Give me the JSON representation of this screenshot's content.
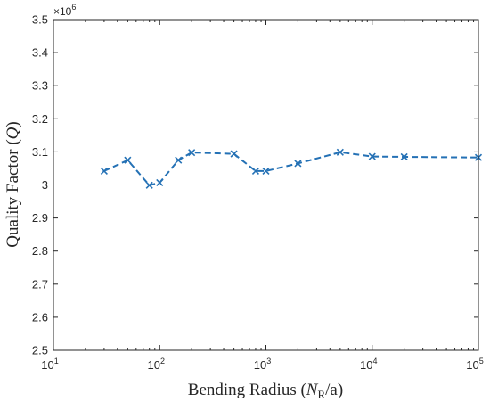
{
  "chart_data": {
    "type": "line",
    "title": "",
    "xlabel": {
      "main": "Bending Radius (",
      "var": "N",
      "sub": "R",
      "tail": "/a)"
    },
    "ylabel": {
      "main": "Quality Factor (",
      "var": "Q",
      "tail": ")"
    },
    "xscale": "log",
    "xlim": [
      10,
      100000
    ],
    "ylim": [
      2.5,
      3.5
    ],
    "y_multiplier": {
      "base": "×10",
      "exp": "6"
    },
    "x_ticks": [
      {
        "value": 10,
        "base": "10",
        "exp": "1"
      },
      {
        "value": 100,
        "base": "10",
        "exp": "2"
      },
      {
        "value": 1000,
        "base": "10",
        "exp": "3"
      },
      {
        "value": 10000,
        "base": "10",
        "exp": "4"
      },
      {
        "value": 100000,
        "base": "10",
        "exp": "5"
      }
    ],
    "y_ticks": [
      {
        "value": 2.5,
        "label": "2.5"
      },
      {
        "value": 2.6,
        "label": "2.6"
      },
      {
        "value": 2.7,
        "label": "2.7"
      },
      {
        "value": 2.8,
        "label": "2.8"
      },
      {
        "value": 2.9,
        "label": "2.9"
      },
      {
        "value": 3.0,
        "label": "3"
      },
      {
        "value": 3.1,
        "label": "3.1"
      },
      {
        "value": 3.2,
        "label": "3.2"
      },
      {
        "value": 3.3,
        "label": "3.3"
      },
      {
        "value": 3.4,
        "label": "3.4"
      },
      {
        "value": 3.5,
        "label": "3.5"
      }
    ],
    "grid": false,
    "series": [
      {
        "color": "#2471b5",
        "line_style": "dashed",
        "marker": "x",
        "x": [
          30,
          50,
          80,
          100,
          150,
          200,
          500,
          800,
          1000,
          2000,
          5000,
          10000,
          20000,
          100000
        ],
        "y": [
          3.042,
          3.075,
          2.999,
          3.007,
          3.075,
          3.098,
          3.094,
          3.042,
          3.042,
          3.065,
          3.099,
          3.086,
          3.085,
          3.083
        ]
      }
    ]
  }
}
